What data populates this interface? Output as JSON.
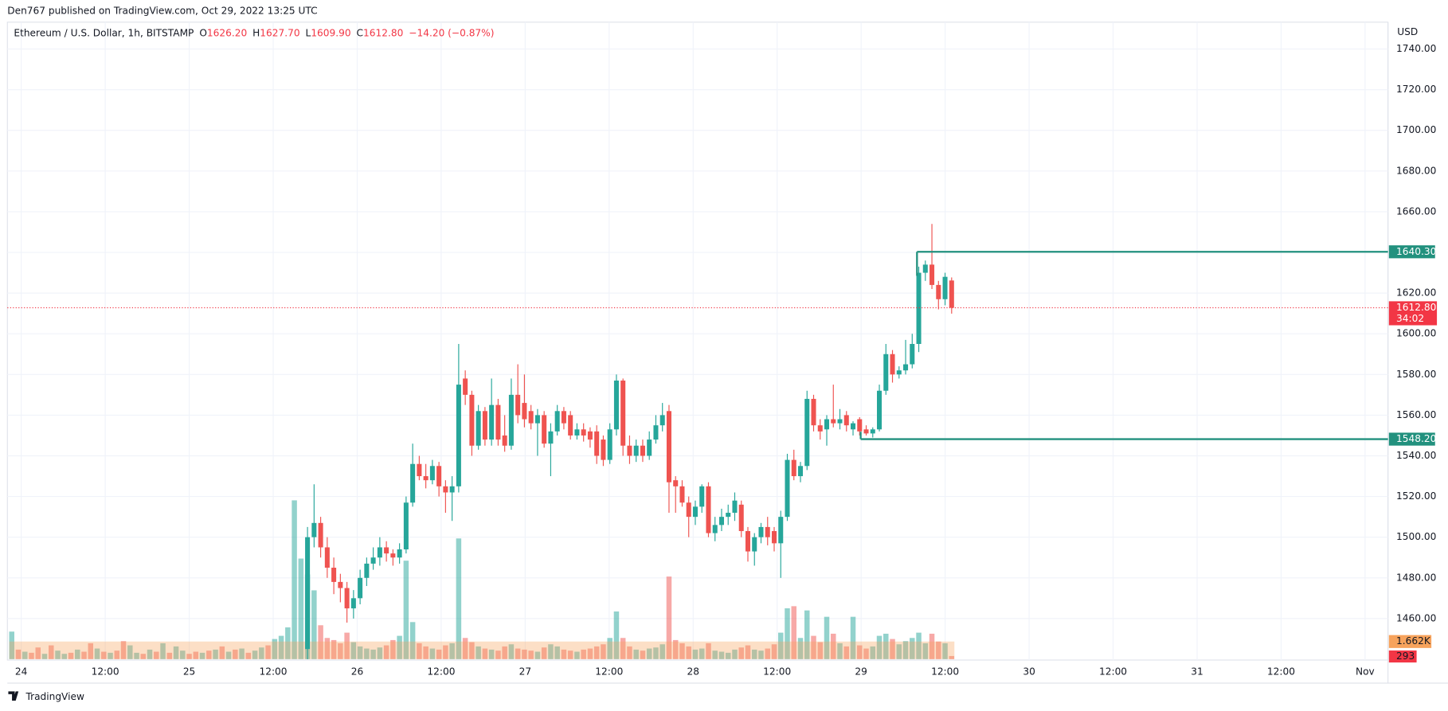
{
  "header": {
    "published": "Den767 published on TradingView.com, Oct 29, 2022 13:25 UTC"
  },
  "footer": {
    "brand": "TradingView"
  },
  "chart_data": {
    "type": "candlestick",
    "symbol": "Ethereum / U.S. Dollar, 1h, BITSTAMP",
    "legend": [
      {
        "key": "O",
        "value": "1626.20"
      },
      {
        "key": "H",
        "value": "1627.70"
      },
      {
        "key": "L",
        "value": "1609.90"
      },
      {
        "key": "C",
        "value": "1612.80"
      }
    ],
    "change": "−14.20 (−0.87%)",
    "currency": "USD",
    "up_color": "#26a69a",
    "down_color": "#ef5350",
    "ylim": [
      1439.6,
      1753.2
    ],
    "yticks": [
      {
        "value": 1460,
        "label": "1460.00"
      },
      {
        "value": 1480,
        "label": "1480.00"
      },
      {
        "value": 1500,
        "label": "1500.00"
      },
      {
        "value": 1520,
        "label": "1520.00"
      },
      {
        "value": 1540,
        "label": "1540.00"
      },
      {
        "value": 1560,
        "label": "1560.00"
      },
      {
        "value": 1580,
        "label": "1580.00"
      },
      {
        "value": 1600,
        "label": "1600.00"
      },
      {
        "value": 1620,
        "label": "1620.00"
      },
      {
        "value": 1640,
        "label": "1640.00"
      },
      {
        "value": 1660,
        "label": "1660.00"
      },
      {
        "value": 1680,
        "label": "1680.00"
      },
      {
        "value": 1700,
        "label": "1700.00"
      },
      {
        "value": 1720,
        "label": "1720.00"
      },
      {
        "value": 1740,
        "label": "1740.00"
      }
    ],
    "grid": true,
    "categories": [
      "24",
      "12:00",
      "25",
      "12:00",
      "26",
      "12:00",
      "27",
      "12:00",
      "28",
      "12:00",
      "29",
      "12:00",
      "30",
      "12:00",
      "31",
      "12:00",
      "Nov"
    ],
    "ohlc": [
      [
        1445,
        1505,
        1440,
        1500
      ],
      [
        1500,
        1526,
        1495,
        1507
      ],
      [
        1507,
        1510,
        1490,
        1495
      ],
      [
        1495,
        1500,
        1480,
        1485
      ],
      [
        1485,
        1490,
        1472,
        1478
      ],
      [
        1478,
        1482,
        1468,
        1475
      ],
      [
        1475,
        1478,
        1458,
        1465
      ],
      [
        1465,
        1474,
        1460,
        1470
      ],
      [
        1470,
        1484,
        1467,
        1480
      ],
      [
        1480,
        1490,
        1476,
        1487
      ],
      [
        1487,
        1495,
        1484,
        1490
      ],
      [
        1490,
        1500,
        1486,
        1495
      ],
      [
        1495,
        1498,
        1488,
        1492
      ],
      [
        1492,
        1494,
        1486,
        1490
      ],
      [
        1490,
        1497,
        1487,
        1494
      ],
      [
        1494,
        1520,
        1492,
        1517
      ],
      [
        1517,
        1546,
        1515,
        1536
      ],
      [
        1536,
        1540,
        1528,
        1530
      ],
      [
        1530,
        1536,
        1524,
        1528
      ],
      [
        1528,
        1538,
        1526,
        1535
      ],
      [
        1535,
        1537,
        1520,
        1525
      ],
      [
        1525,
        1528,
        1512,
        1522
      ],
      [
        1522,
        1530,
        1508,
        1525
      ],
      [
        1525,
        1595,
        1522,
        1575
      ],
      [
        1578,
        1582,
        1565,
        1570
      ],
      [
        1570,
        1572,
        1540,
        1545
      ],
      [
        1545,
        1565,
        1543,
        1562
      ],
      [
        1562,
        1564,
        1545,
        1548
      ],
      [
        1548,
        1578,
        1545,
        1565
      ],
      [
        1565,
        1568,
        1545,
        1548
      ],
      [
        1550,
        1560,
        1542,
        1545
      ],
      [
        1545,
        1578,
        1543,
        1570
      ],
      [
        1570,
        1585,
        1556,
        1560
      ],
      [
        1566,
        1580,
        1554,
        1558
      ],
      [
        1562,
        1565,
        1553,
        1556
      ],
      [
        1556,
        1563,
        1540,
        1560
      ],
      [
        1560,
        1562,
        1544,
        1546
      ],
      [
        1546,
        1556,
        1530,
        1552
      ],
      [
        1552,
        1565,
        1550,
        1562
      ],
      [
        1562,
        1564,
        1553,
        1556
      ],
      [
        1560,
        1562,
        1548,
        1550
      ],
      [
        1550,
        1556,
        1548,
        1553
      ],
      [
        1553,
        1556,
        1547,
        1550
      ],
      [
        1552,
        1554,
        1544,
        1548
      ],
      [
        1552,
        1555,
        1536,
        1540
      ],
      [
        1548,
        1550,
        1535,
        1538
      ],
      [
        1538,
        1556,
        1536,
        1553
      ],
      [
        1553,
        1580,
        1550,
        1577
      ],
      [
        1577,
        1578,
        1540,
        1545
      ],
      [
        1545,
        1550,
        1536,
        1540
      ],
      [
        1540,
        1548,
        1537,
        1545
      ],
      [
        1545,
        1548,
        1537,
        1540
      ],
      [
        1540,
        1552,
        1538,
        1548
      ],
      [
        1548,
        1560,
        1546,
        1555
      ],
      [
        1555,
        1566,
        1552,
        1560
      ],
      [
        1562,
        1565,
        1512,
        1527
      ],
      [
        1528,
        1530,
        1512,
        1525
      ],
      [
        1525,
        1528,
        1515,
        1517
      ],
      [
        1517,
        1520,
        1500,
        1510
      ],
      [
        1510,
        1518,
        1506,
        1515
      ],
      [
        1515,
        1526,
        1512,
        1525
      ],
      [
        1525,
        1527,
        1500,
        1502
      ],
      [
        1502,
        1510,
        1498,
        1506
      ],
      [
        1506,
        1514,
        1503,
        1510
      ],
      [
        1510,
        1516,
        1506,
        1512
      ],
      [
        1512,
        1522,
        1508,
        1518
      ],
      [
        1516,
        1518,
        1500,
        1503
      ],
      [
        1503,
        1505,
        1488,
        1493
      ],
      [
        1493,
        1502,
        1486,
        1500
      ],
      [
        1500,
        1507,
        1497,
        1505
      ],
      [
        1505,
        1510,
        1496,
        1500
      ],
      [
        1503,
        1505,
        1493,
        1497
      ],
      [
        1497,
        1513,
        1480,
        1510
      ],
      [
        1510,
        1541,
        1508,
        1538
      ],
      [
        1538,
        1543,
        1528,
        1530
      ],
      [
        1530,
        1537,
        1527,
        1535
      ],
      [
        1535,
        1572,
        1533,
        1568
      ],
      [
        1568,
        1570,
        1552,
        1555
      ],
      [
        1555,
        1558,
        1548,
        1552
      ],
      [
        1553,
        1560,
        1545,
        1558
      ],
      [
        1558,
        1575,
        1554,
        1556
      ],
      [
        1556,
        1563,
        1553,
        1558
      ],
      [
        1560,
        1562,
        1552,
        1555
      ],
      [
        1553,
        1557,
        1550,
        1556
      ],
      [
        1558,
        1559,
        1550,
        1552
      ],
      [
        1553,
        1555,
        1550,
        1551
      ],
      [
        1551,
        1554,
        1549,
        1553
      ],
      [
        1553,
        1575,
        1552,
        1572
      ],
      [
        1572,
        1595,
        1570,
        1590
      ],
      [
        1590,
        1592,
        1576,
        1580
      ],
      [
        1580,
        1584,
        1578,
        1582
      ],
      [
        1582,
        1597,
        1580,
        1585
      ],
      [
        1585,
        1600,
        1583,
        1595
      ],
      [
        1595,
        1633,
        1591,
        1630
      ],
      [
        1630,
        1636,
        1626,
        1634
      ],
      [
        1634,
        1654,
        1622,
        1624
      ],
      [
        1624,
        1626,
        1612,
        1617
      ],
      [
        1617,
        1630,
        1614,
        1628
      ],
      [
        1626.2,
        1627.7,
        1609.9,
        1612.8
      ]
    ],
    "volume": [
      8000,
      6500,
      3200,
      2000,
      1800,
      1500,
      2500,
      1600,
      1200,
      1000,
      900,
      1100,
      1300,
      1800,
      2200,
      9300,
      3500,
      1500,
      1200,
      1000,
      900,
      1300,
      1500,
      11400,
      2000,
      1600,
      1200,
      1000,
      900,
      800,
      1200,
      1400,
      1000,
      900,
      800,
      700,
      1100,
      1400,
      1200,
      900,
      800,
      700,
      900,
      1000,
      1200,
      1400,
      2000,
      4500,
      2000,
      1200,
      900,
      800,
      1000,
      1100,
      1400,
      7800,
      1800,
      1500,
      1200,
      900,
      1000,
      1500,
      800,
      700,
      600,
      900,
      1100,
      1300,
      900,
      800,
      1000,
      1400,
      2500,
      4800,
      5000,
      2000,
      4600,
      2200,
      1600,
      4000,
      2400,
      1500,
      1200,
      4000,
      1300,
      1000,
      1200,
      2200,
      2400,
      1900,
      1400,
      1700,
      2000,
      2500,
      1500,
      2400,
      1662,
      1500,
      293
    ],
    "early_volume": [
      2600,
      900,
      700,
      600,
      1100,
      500,
      1300,
      800,
      500,
      600,
      900,
      700,
      1500,
      1000,
      700,
      600,
      800,
      1700,
      1300,
      600,
      500,
      900,
      700,
      1500,
      600,
      1200,
      800,
      500,
      700,
      600,
      800,
      900,
      1200,
      700,
      900,
      1000,
      600,
      800,
      1100,
      1300,
      1900,
      2200,
      3000,
      15000,
      9500
    ],
    "early_volume_up": [
      true,
      false,
      true,
      false,
      false,
      true,
      false,
      true,
      true,
      false,
      true,
      false,
      false,
      true,
      false,
      true,
      false,
      false,
      true,
      true,
      false,
      true,
      false,
      true,
      false,
      true,
      true,
      false,
      false,
      true,
      false,
      true,
      false,
      true,
      false,
      true,
      false,
      true,
      true,
      false,
      true,
      true,
      true,
      true,
      true
    ],
    "volume_ma": {
      "value": 1662,
      "label": "1.662K",
      "color": "#f7a35c"
    },
    "last_volume": 293,
    "levels": [
      {
        "value": 1640.3,
        "label": "1640.30",
        "color": "#22917e"
      },
      {
        "value": 1548.2,
        "label": "1548.20",
        "color": "#22917e"
      }
    ],
    "last_price": {
      "value": 1612.8,
      "label": "1612.80",
      "countdown": "34:02",
      "color": "#f23645"
    }
  }
}
